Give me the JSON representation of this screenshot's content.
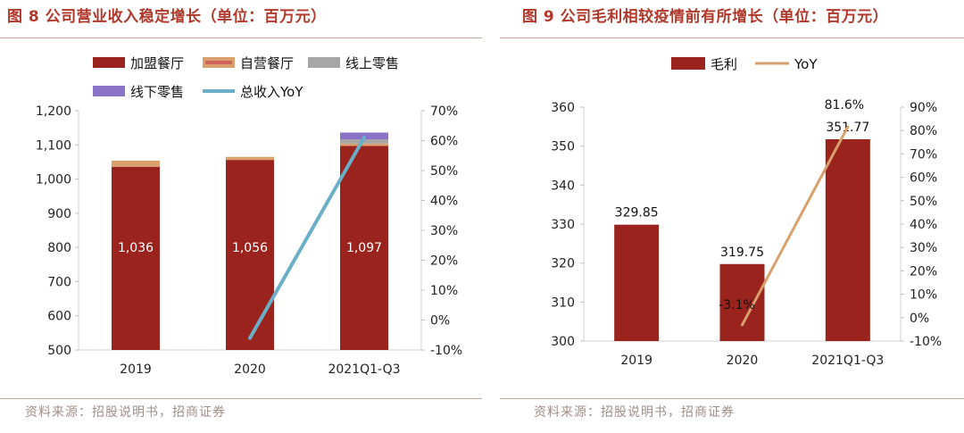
{
  "fig8": {
    "title": "图 8  公司营业收入稳定增长（单位：百万元）",
    "source": "资料来源：招股说明书，招商证券"
  },
  "fig9": {
    "title": "图 9 公司毛利相较疫情前有所增长（单位：百万元）",
    "source": "资料来源：招股说明书，招商证券"
  },
  "colors": {
    "dark_red": "#9b231d",
    "orange": "#d9a06d",
    "gray": "#a6a6a6",
    "purple": "#8a72c6",
    "teal": "#6aaec8",
    "title_red": "#b0392b"
  },
  "chart_data": [
    {
      "type": "bar",
      "stacked": true,
      "categories": [
        "2019",
        "2020",
        "2021Q1-Q3"
      ],
      "series": [
        {
          "name": "加盟餐厅",
          "values": [
            1036,
            1056,
            1097
          ],
          "labels": [
            "1,036",
            "1,056",
            "1,097"
          ]
        },
        {
          "name": "自营餐厅",
          "values": [
            18,
            9,
            7
          ]
        },
        {
          "name": "线上零售",
          "values": [
            0,
            0,
            12
          ]
        },
        {
          "name": "线下零售",
          "values": [
            0,
            0,
            20
          ]
        },
        {
          "name": "总收入YoY",
          "type": "line",
          "axis": "right",
          "values": [
            null,
            -6,
            61
          ]
        }
      ],
      "ylim": [
        500,
        1200
      ],
      "yticks": [
        "500",
        "600",
        "700",
        "800",
        "900",
        "1,000",
        "1,100",
        "1,200"
      ],
      "y2lim": [
        -10,
        70
      ],
      "y2ticks": [
        "-10%",
        "0%",
        "10%",
        "20%",
        "30%",
        "40%",
        "50%",
        "60%",
        "70%"
      ],
      "legend": "top"
    },
    {
      "type": "bar",
      "categories": [
        "2019",
        "2020",
        "2021Q1-Q3"
      ],
      "series": [
        {
          "name": "毛利",
          "values": [
            329.85,
            319.75,
            351.77
          ],
          "labels": [
            "329.85",
            "319.75",
            "351.77"
          ]
        },
        {
          "name": "YoY",
          "type": "line",
          "axis": "right",
          "values": [
            null,
            -3.1,
            81.6
          ],
          "labels": [
            "",
            "-3.1%",
            "81.6%"
          ]
        }
      ],
      "ylim": [
        300,
        360
      ],
      "yticks": [
        "300",
        "310",
        "320",
        "330",
        "340",
        "350",
        "360"
      ],
      "y2lim": [
        -10,
        90
      ],
      "y2ticks": [
        "-10%",
        "0%",
        "10%",
        "20%",
        "30%",
        "40%",
        "50%",
        "60%",
        "70%",
        "80%",
        "90%"
      ],
      "legend": "top"
    }
  ]
}
